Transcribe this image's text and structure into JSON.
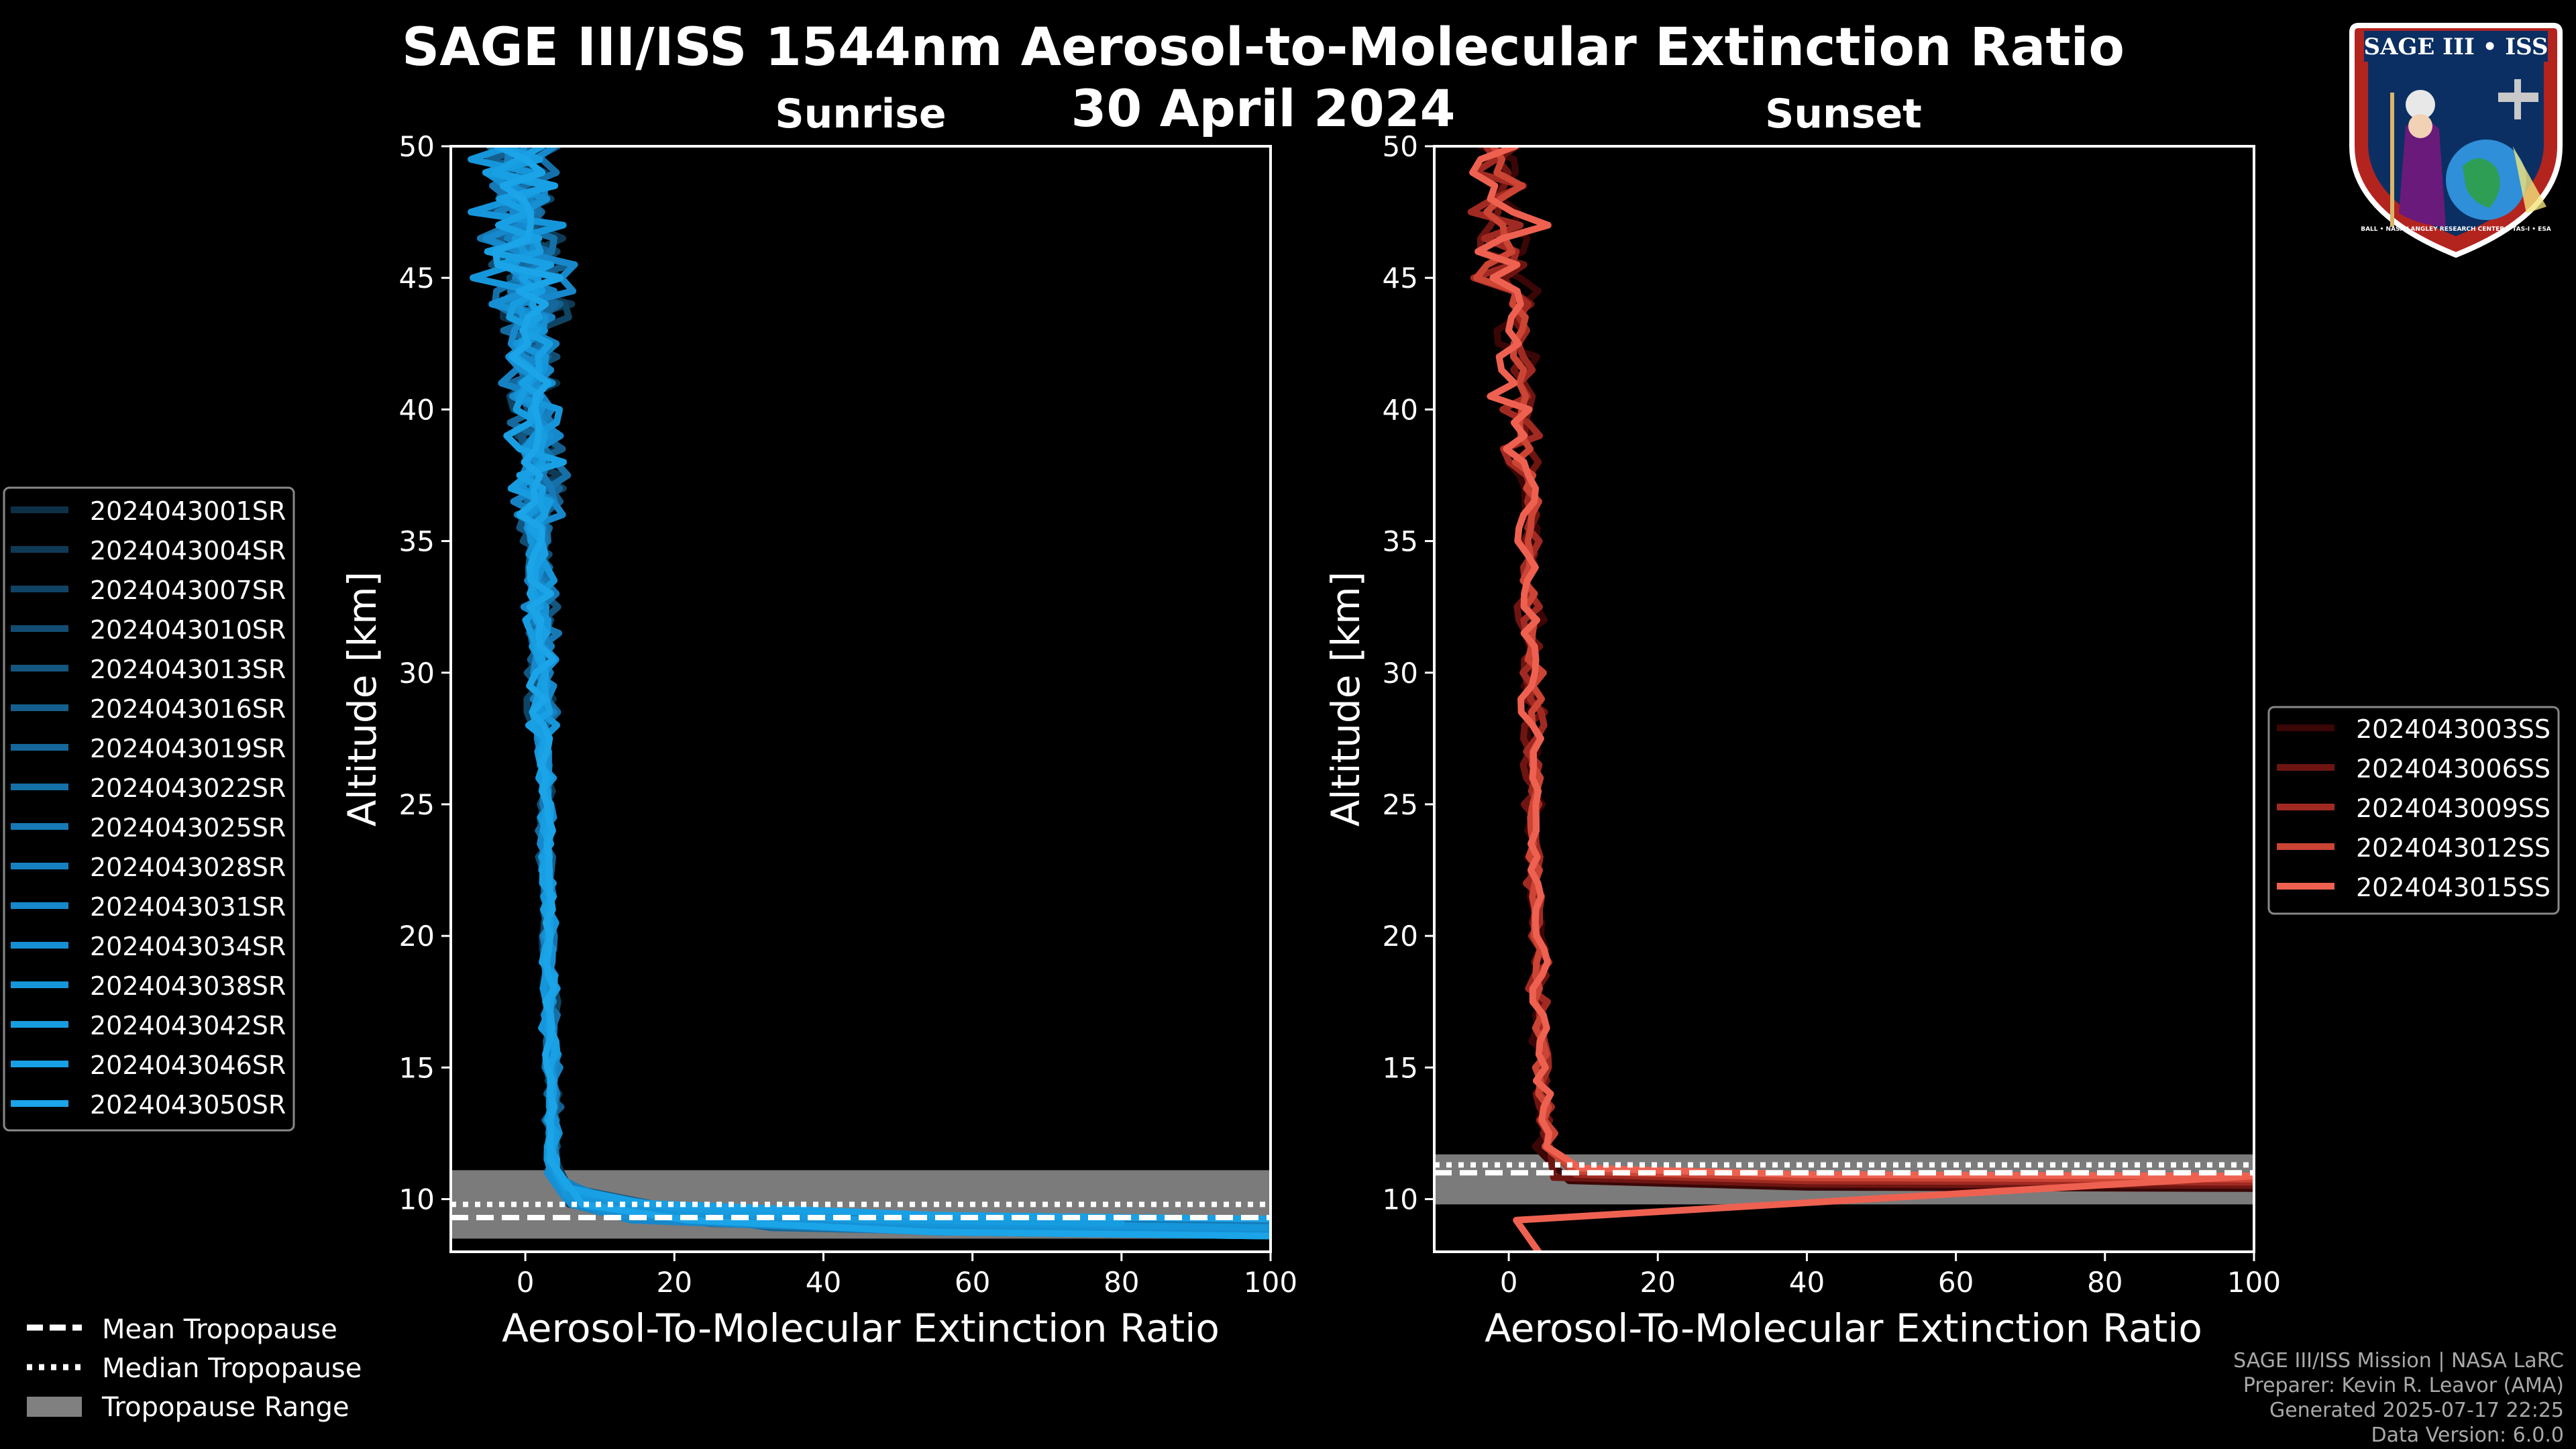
{
  "chart_data": {
    "title": "SAGE III/ISS 1544nm Aerosol-to-Molecular Extinction Ratio",
    "date": "30 April 2024",
    "panels": [
      {
        "type": "line",
        "subtitle": "Sunrise",
        "xlabel": "Aerosol-To-Molecular Extinction Ratio",
        "ylabel": "Altitude [km]",
        "xlim": [
          -10,
          100
        ],
        "ylim": [
          8,
          50
        ],
        "xticks": [
          "0",
          "20",
          "40",
          "60",
          "80",
          "100"
        ],
        "yticks": [
          "10",
          "15",
          "20",
          "25",
          "30",
          "35",
          "40",
          "45",
          "50"
        ],
        "tropopause": {
          "mean": 9.3,
          "median": 9.8,
          "range": [
            8.5,
            11.1
          ]
        },
        "legend_location": "left",
        "series": [
          {
            "name": "2024043001SR",
            "color": "#0c3147"
          },
          {
            "name": "2024043004SR",
            "color": "#0e3a55"
          },
          {
            "name": "2024043007SR",
            "color": "#104463"
          },
          {
            "name": "2024043010SR",
            "color": "#124d71"
          },
          {
            "name": "2024043013SR",
            "color": "#13567f"
          },
          {
            "name": "2024043016SR",
            "color": "#145f8d"
          },
          {
            "name": "2024043019SR",
            "color": "#15689b"
          },
          {
            "name": "2024043022SR",
            "color": "#1570a8"
          },
          {
            "name": "2024043025SR",
            "color": "#1679b5"
          },
          {
            "name": "2024043028SR",
            "color": "#1681c1"
          },
          {
            "name": "2024043031SR",
            "color": "#1688cb"
          },
          {
            "name": "2024043034SR",
            "color": "#168fd3"
          },
          {
            "name": "2024043038SR",
            "color": "#1696da"
          },
          {
            "name": "2024043042SR",
            "color": "#179ce0"
          },
          {
            "name": "2024043046SR",
            "color": "#19a0e4"
          },
          {
            "name": "2024043050SR",
            "color": "#1ba4e8"
          }
        ]
      },
      {
        "type": "line",
        "subtitle": "Sunset",
        "xlabel": "Aerosol-To-Molecular Extinction Ratio",
        "ylabel": "Altitude [km]",
        "xlim": [
          -10,
          100
        ],
        "ylim": [
          8,
          50
        ],
        "xticks": [
          "0",
          "20",
          "40",
          "60",
          "80",
          "100"
        ],
        "yticks": [
          "10",
          "15",
          "20",
          "25",
          "30",
          "35",
          "40",
          "45",
          "50"
        ],
        "tropopause": {
          "mean": 11.0,
          "median": 11.3,
          "range": [
            9.8,
            11.7
          ]
        },
        "legend_location": "right",
        "series": [
          {
            "name": "2024043003SS",
            "color": "#3a0606"
          },
          {
            "name": "2024043006SS",
            "color": "#6e1512"
          },
          {
            "name": "2024043009SS",
            "color": "#a02a22"
          },
          {
            "name": "2024043012SS",
            "color": "#cb4434"
          },
          {
            "name": "2024043015SS",
            "color": "#ee6150"
          }
        ]
      }
    ],
    "legend_common": [
      "Mean Tropopause",
      "Median Tropopause",
      "Tropopause Range"
    ]
  },
  "logo": {
    "text": "SAGE III • ISS",
    "ring": "BALL • NASA LANGLEY RESEARCH CENTER • TAS-I • ESA"
  },
  "footer": [
    "SAGE III/ISS Mission | NASA LaRC",
    "Preparer: Kevin R. Leavor (AMA)",
    "Generated 2025-07-17 22:25",
    "Data Version: 6.0.0"
  ]
}
